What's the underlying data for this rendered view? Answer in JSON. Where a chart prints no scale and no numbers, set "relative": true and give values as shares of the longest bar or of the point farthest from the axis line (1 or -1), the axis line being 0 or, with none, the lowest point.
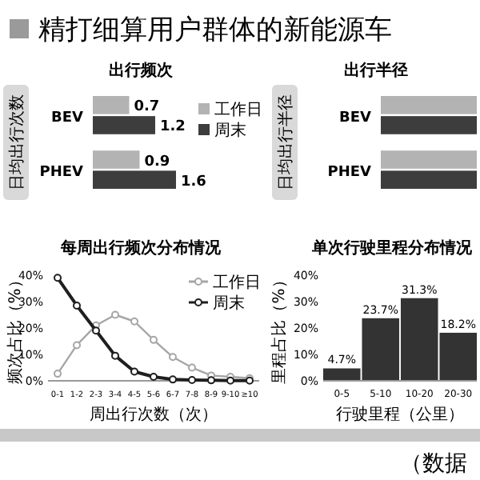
{
  "chart_data": [
    {
      "type": "bar",
      "title": "精打细算用户群体的新能源车",
      "subtitle": "出行频次",
      "orientation": "horizontal",
      "ylabel": "日均出行次数",
      "categories": [
        "BEV",
        "PHEV"
      ],
      "series": [
        {
          "name": "工作日",
          "color": "#b3b3b3",
          "values": [
            0.7,
            0.9
          ]
        },
        {
          "name": "周末",
          "color": "#3d3d3d",
          "values": [
            1.2,
            1.6
          ]
        }
      ],
      "data_labels": true,
      "legend": "right"
    },
    {
      "type": "bar",
      "title": "出行半径",
      "orientation": "horizontal",
      "ylabel": "日均出行半径",
      "categories": [
        "BEV",
        "PHEV"
      ],
      "relative": true,
      "series": [
        {
          "color": "#b3b3b3",
          "values": [
            1,
            1
          ]
        },
        {
          "color": "#3d3d3d",
          "values": [
            1,
            1
          ]
        }
      ]
    },
    {
      "type": "line",
      "title": "每周出行频次分布情况",
      "xlabel": "周出行次数（次）",
      "ylabel": "频次占比（%）",
      "categories": [
        "0-1",
        "1-2",
        "2-3",
        "3-4",
        "4-5",
        "5-6",
        "6-7",
        "7-8",
        "8-9",
        "9-10",
        "≥10"
      ],
      "series": [
        {
          "name": "工作日",
          "color": "#a6a6a6",
          "values": [
            2.7,
            13.5,
            21,
            25,
            22.5,
            15.5,
            9,
            5,
            2,
            1.5,
            1
          ]
        },
        {
          "name": "周末",
          "color": "#1f1f1f",
          "values": [
            39,
            28.5,
            19,
            9.5,
            3.5,
            1.5,
            0.5,
            0.3,
            0.2,
            0.1,
            0.1
          ]
        }
      ],
      "ylim": [
        0,
        40
      ],
      "yticks": [
        {
          "value": 0,
          "label": "0%"
        },
        {
          "value": 10,
          "label": "10%"
        },
        {
          "value": 20,
          "label": "20%"
        },
        {
          "value": 30,
          "label": "30%"
        },
        {
          "value": 40,
          "label": "40%"
        }
      ],
      "marker": "circle",
      "legend": "top right"
    },
    {
      "type": "bar",
      "title": "单次行驶里程分布情况",
      "xlabel": "行驶里程（公里）",
      "ylabel": "里程占比（%）",
      "categories": [
        "0-5",
        "5-10",
        "10-20",
        "20-30"
      ],
      "values": [
        4.7,
        23.7,
        31.3,
        18.2
      ],
      "value_labels": [
        "4.7%",
        "23.7%",
        "31.3%",
        "18.2%"
      ],
      "color": "#333333",
      "ylim": [
        0,
        40
      ],
      "yticks": [
        {
          "value": 0,
          "label": "0%"
        },
        {
          "value": 10,
          "label": "10%"
        },
        {
          "value": 20,
          "label": "20%"
        },
        {
          "value": 30,
          "label": "30%"
        },
        {
          "value": 40,
          "label": "40%"
        }
      ],
      "annotations": [
        "（数据"
      ]
    }
  ]
}
